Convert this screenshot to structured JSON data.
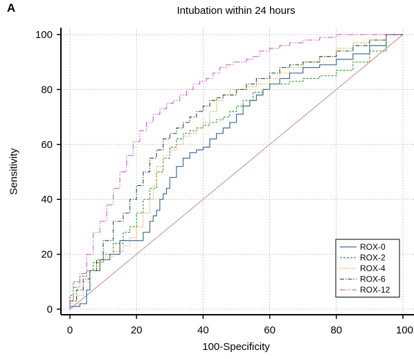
{
  "panel_label": "A",
  "chart_data": {
    "type": "line",
    "title": "Intubation within 24 hours",
    "xlabel": "100-Specificity",
    "ylabel": "Sensitivity",
    "xlim": [
      0,
      100
    ],
    "ylim": [
      0,
      100
    ],
    "xticks": [
      0,
      20,
      40,
      60,
      80,
      100
    ],
    "yticks": [
      0,
      20,
      40,
      60,
      80,
      100
    ],
    "grid": true,
    "legend_position": "bottom-right",
    "reference_line": {
      "x": [
        0,
        100
      ],
      "y": [
        0,
        100
      ],
      "color": "#d49a9a"
    },
    "series": [
      {
        "name": "ROX-0",
        "color": "#3f6a9a",
        "dash": "solid",
        "x": [
          0,
          3,
          5,
          6,
          9,
          12,
          15,
          18,
          20,
          22,
          24,
          25,
          26,
          27,
          28,
          29,
          30,
          32,
          34,
          36,
          38,
          40,
          41,
          42,
          44,
          46,
          48,
          50,
          52,
          54,
          56,
          58,
          60,
          63,
          66,
          70,
          75,
          80,
          85,
          90,
          95,
          100
        ],
        "y": [
          0,
          1,
          2,
          7,
          14,
          18,
          20,
          25,
          25,
          25,
          28,
          32,
          34,
          36,
          40,
          42,
          44,
          48,
          52,
          55,
          57,
          58,
          59,
          59,
          62,
          64,
          66,
          68,
          71,
          74,
          76,
          78,
          80,
          82,
          84,
          86,
          88,
          89,
          91,
          93,
          96,
          100
        ]
      },
      {
        "name": "ROX-2",
        "color": "#3a9a3a",
        "dash": "3,2",
        "x": [
          0,
          1,
          3,
          5,
          7,
          10,
          13,
          16,
          18,
          20,
          22,
          24,
          26,
          28,
          30,
          32,
          34,
          36,
          38,
          40,
          42,
          44,
          46,
          48,
          50,
          52,
          55,
          58,
          60,
          63,
          66,
          70,
          75,
          80,
          85,
          90,
          95,
          100
        ],
        "y": [
          0,
          5,
          10,
          12,
          14,
          17,
          20,
          24,
          28,
          30,
          35,
          40,
          44,
          50,
          55,
          59,
          62,
          64,
          65,
          66,
          67,
          68,
          69,
          70,
          72,
          74,
          76,
          79,
          80,
          82,
          82,
          83,
          84,
          85,
          87,
          90,
          94,
          100
        ]
      },
      {
        "name": "ROX-4",
        "color": "#f0a860",
        "dash": "1.5,1.5",
        "x": [
          0,
          2,
          4,
          6,
          8,
          10,
          13,
          16,
          18,
          20,
          22,
          24,
          25,
          26,
          28,
          30,
          32,
          34,
          36,
          38,
          40,
          42,
          44,
          46,
          48,
          50,
          53,
          56,
          60,
          63,
          66,
          70,
          75,
          80,
          85,
          90,
          95,
          100
        ],
        "y": [
          0,
          2,
          5,
          10,
          14,
          17,
          19,
          21,
          23,
          26,
          30,
          35,
          40,
          45,
          52,
          56,
          58,
          60,
          63,
          64,
          66,
          68,
          72,
          76,
          78,
          80,
          80,
          81,
          82,
          84,
          86,
          88,
          90,
          92,
          95,
          97,
          98,
          100
        ]
      },
      {
        "name": "ROX-6",
        "color": "#2e5a3a",
        "dash": "6,2,1.5,2",
        "x": [
          0,
          2,
          4,
          6,
          8,
          10,
          13,
          16,
          18,
          20,
          22,
          24,
          26,
          28,
          30,
          32,
          34,
          36,
          38,
          40,
          42,
          44,
          46,
          48,
          50,
          53,
          56,
          60,
          63,
          66,
          70,
          75,
          80,
          85,
          90,
          95,
          100
        ],
        "y": [
          0,
          3,
          7,
          11,
          14,
          18,
          25,
          32,
          35,
          40,
          45,
          50,
          55,
          58,
          62,
          64,
          66,
          68,
          70,
          72,
          74,
          76,
          77,
          78,
          78,
          80,
          82,
          84,
          86,
          88,
          89,
          90,
          92,
          94,
          96,
          98,
          100
        ]
      },
      {
        "name": "ROX-12",
        "color": "#d468d4",
        "dash": "8,2,1.5,2,1.5,2",
        "x": [
          0,
          1,
          3,
          5,
          7,
          9,
          11,
          13,
          15,
          17,
          19,
          21,
          23,
          25,
          27,
          29,
          31,
          33,
          35,
          37,
          39,
          41,
          43,
          45,
          47,
          49,
          51,
          53,
          55,
          57,
          60,
          63,
          66,
          70,
          75,
          80,
          85,
          90,
          95,
          100
        ],
        "y": [
          0,
          3,
          8,
          13,
          20,
          28,
          32,
          38,
          44,
          50,
          56,
          61,
          65,
          68,
          71,
          73,
          75,
          76,
          78,
          80,
          82,
          83,
          84,
          86,
          88,
          89,
          90,
          90,
          91,
          92,
          94,
          95,
          96,
          97,
          98,
          99,
          100,
          100,
          100,
          100
        ]
      }
    ]
  }
}
